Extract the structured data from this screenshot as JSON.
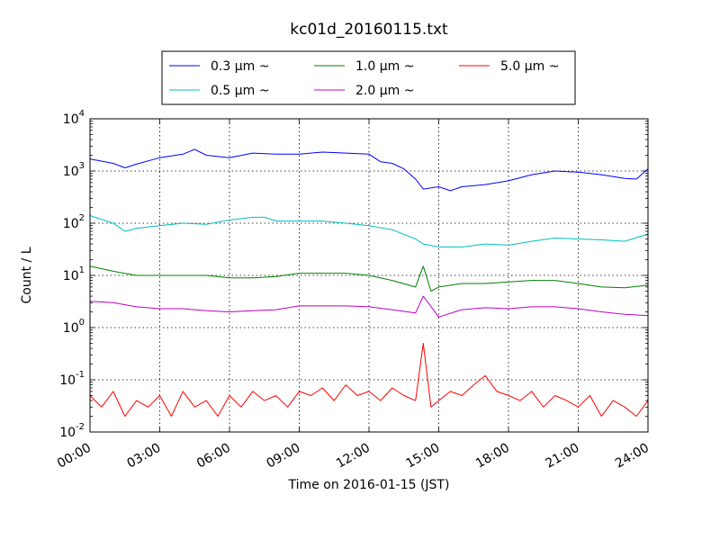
{
  "chart_data": {
    "type": "line",
    "title": "kc01d_20160115.txt",
    "xlabel": "Time on 2016-01-15 (JST)",
    "ylabel": "Count / L",
    "xscale": "time",
    "yscale": "log",
    "xlim": [
      "00:00",
      "24:00"
    ],
    "ylim": [
      0.01,
      10000
    ],
    "grid": true,
    "legend_position": "top-center",
    "x_ticks": [
      "00:00",
      "03:00",
      "06:00",
      "09:00",
      "12:00",
      "15:00",
      "18:00",
      "21:00",
      "24:00"
    ],
    "y_ticks": [
      {
        "base": "10",
        "exp": "-2"
      },
      {
        "base": "10",
        "exp": "-1"
      },
      {
        "base": "10",
        "exp": "0"
      },
      {
        "base": "10",
        "exp": "1"
      },
      {
        "base": "10",
        "exp": "2"
      },
      {
        "base": "10",
        "exp": "3"
      },
      {
        "base": "10",
        "exp": "4"
      }
    ],
    "series": [
      {
        "name": "0.3 μm ~",
        "color": "#0000ff",
        "x": [
          "00:00",
          "01:00",
          "01:30",
          "02:00",
          "03:00",
          "04:00",
          "04:30",
          "05:00",
          "06:00",
          "07:00",
          "08:00",
          "09:00",
          "10:00",
          "11:00",
          "12:00",
          "12:30",
          "13:00",
          "13:30",
          "14:00",
          "14:20",
          "15:00",
          "15:30",
          "16:00",
          "17:00",
          "18:00",
          "19:00",
          "20:00",
          "21:00",
          "22:00",
          "23:00",
          "23:30",
          "24:00"
        ],
        "y": [
          1700,
          1400,
          1150,
          1350,
          1800,
          2100,
          2600,
          2000,
          1800,
          2200,
          2100,
          2100,
          2300,
          2200,
          2100,
          1500,
          1400,
          1100,
          700,
          450,
          500,
          420,
          500,
          550,
          650,
          850,
          1000,
          950,
          850,
          720,
          700,
          1100
        ]
      },
      {
        "name": "0.5 μm ~",
        "color": "#00bfbf",
        "x": [
          "00:00",
          "01:00",
          "01:30",
          "02:00",
          "03:00",
          "04:00",
          "05:00",
          "06:00",
          "07:00",
          "07:30",
          "08:00",
          "09:00",
          "10:00",
          "11:00",
          "12:00",
          "13:00",
          "14:00",
          "14:20",
          "15:00",
          "16:00",
          "17:00",
          "18:00",
          "19:00",
          "20:00",
          "21:00",
          "22:00",
          "23:00",
          "24:00"
        ],
        "y": [
          140,
          100,
          70,
          80,
          90,
          100,
          95,
          115,
          130,
          130,
          110,
          110,
          110,
          100,
          90,
          75,
          50,
          40,
          35,
          35,
          40,
          38,
          45,
          52,
          50,
          48,
          45,
          62
        ]
      },
      {
        "name": "1.0 μm ~",
        "color": "#008000",
        "x": [
          "00:00",
          "01:00",
          "02:00",
          "03:00",
          "04:00",
          "05:00",
          "06:00",
          "07:00",
          "08:00",
          "09:00",
          "10:00",
          "11:00",
          "12:00",
          "13:00",
          "14:00",
          "14:20",
          "14:40",
          "15:00",
          "16:00",
          "17:00",
          "18:00",
          "19:00",
          "20:00",
          "21:00",
          "22:00",
          "23:00",
          "24:00"
        ],
        "y": [
          15,
          12,
          10,
          10,
          10,
          10,
          9,
          9,
          9.5,
          11,
          11,
          11,
          10,
          8,
          6,
          15,
          5,
          6,
          7,
          7,
          7.5,
          8,
          8,
          7,
          6,
          5.8,
          6.5
        ]
      },
      {
        "name": "2.0 μm ~",
        "color": "#bf00bf",
        "x": [
          "00:00",
          "01:00",
          "02:00",
          "03:00",
          "04:00",
          "05:00",
          "06:00",
          "07:00",
          "08:00",
          "09:00",
          "10:00",
          "11:00",
          "12:00",
          "13:00",
          "14:00",
          "14:20",
          "15:00",
          "16:00",
          "17:00",
          "18:00",
          "19:00",
          "20:00",
          "21:00",
          "22:00",
          "23:00",
          "24:00"
        ],
        "y": [
          3.2,
          3,
          2.5,
          2.3,
          2.3,
          2.1,
          2,
          2.1,
          2.2,
          2.6,
          2.6,
          2.6,
          2.5,
          2.2,
          1.9,
          4,
          1.6,
          2.2,
          2.4,
          2.3,
          2.5,
          2.5,
          2.3,
          2,
          1.8,
          1.7
        ]
      },
      {
        "name": "5.0 μm ~",
        "color": "#ff0000",
        "x": [
          "00:00",
          "00:30",
          "01:00",
          "01:30",
          "02:00",
          "02:30",
          "03:00",
          "03:30",
          "04:00",
          "04:30",
          "05:00",
          "05:30",
          "06:00",
          "06:30",
          "07:00",
          "07:30",
          "08:00",
          "08:30",
          "09:00",
          "09:30",
          "10:00",
          "10:30",
          "11:00",
          "11:30",
          "12:00",
          "12:30",
          "13:00",
          "13:30",
          "14:00",
          "14:20",
          "14:40",
          "15:00",
          "15:30",
          "16:00",
          "16:30",
          "17:00",
          "17:30",
          "18:00",
          "18:30",
          "19:00",
          "19:30",
          "20:00",
          "20:30",
          "21:00",
          "21:30",
          "22:00",
          "22:30",
          "23:00",
          "23:30",
          "24:00"
        ],
        "y": [
          0.05,
          0.03,
          0.06,
          0.02,
          0.04,
          0.03,
          0.05,
          0.02,
          0.06,
          0.03,
          0.04,
          0.02,
          0.05,
          0.03,
          0.06,
          0.04,
          0.05,
          0.03,
          0.06,
          0.05,
          0.07,
          0.04,
          0.08,
          0.05,
          0.06,
          0.04,
          0.07,
          0.05,
          0.04,
          0.5,
          0.03,
          0.04,
          0.06,
          0.05,
          0.08,
          0.12,
          0.06,
          0.05,
          0.04,
          0.06,
          0.03,
          0.05,
          0.04,
          0.03,
          0.05,
          0.02,
          0.04,
          0.03,
          0.02,
          0.04
        ]
      }
    ]
  }
}
